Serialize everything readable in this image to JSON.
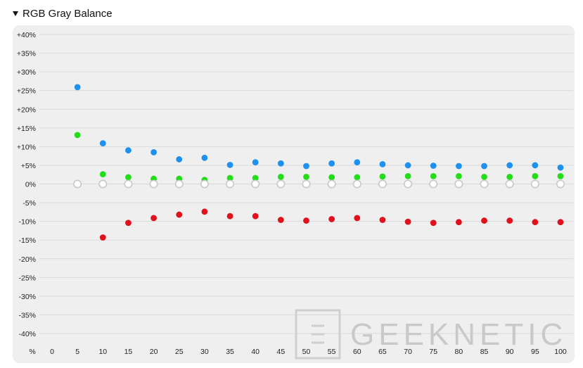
{
  "header": {
    "title": "RGB Gray Balance"
  },
  "watermark": {
    "text": "GEEKNETIC"
  },
  "colors": {
    "blue": "#1e90ef",
    "green": "#22dd18",
    "red": "#e0101c",
    "gray_ring": "#c8c8c8",
    "grid": "#d9d9d9",
    "panel": "#efefef"
  },
  "chart_data": {
    "type": "scatter",
    "title": "RGB Gray Balance",
    "x_axis_unit_label": "%",
    "x_ticks": [
      "0",
      "5",
      "10",
      "15",
      "20",
      "25",
      "30",
      "35",
      "40",
      "45",
      "50",
      "55",
      "60",
      "65",
      "70",
      "75",
      "80",
      "85",
      "90",
      "95",
      "100"
    ],
    "y_ticks": [
      "+40%",
      "+35%",
      "+30%",
      "+25%",
      "+20%",
      "+15%",
      "+10%",
      "+5%",
      "0%",
      "-5%",
      "-10%",
      "-15%",
      "-20%",
      "-25%",
      "-30%",
      "-35%",
      "-40%"
    ],
    "ylim": [
      -40,
      40
    ],
    "xlim": [
      0,
      100
    ],
    "grid": true,
    "x": [
      5,
      10,
      15,
      20,
      25,
      30,
      35,
      40,
      45,
      50,
      55,
      60,
      65,
      70,
      75,
      80,
      85,
      90,
      95,
      100
    ],
    "series": [
      {
        "color": "blue",
        "values": [
          25.9,
          10.9,
          9.0,
          8.5,
          6.6,
          7.0,
          5.1,
          5.8,
          5.5,
          4.8,
          5.5,
          5.8,
          5.3,
          5.0,
          4.9,
          4.8,
          4.8,
          5.0,
          5.0,
          4.4
        ]
      },
      {
        "color": "green",
        "values": [
          13.1,
          2.6,
          1.8,
          1.4,
          1.4,
          1.1,
          1.6,
          1.6,
          1.9,
          1.9,
          1.8,
          1.8,
          2.0,
          2.1,
          2.1,
          2.1,
          1.9,
          1.9,
          2.1,
          2.1
        ]
      },
      {
        "color": "gray_ring",
        "values": [
          0,
          0,
          0,
          0,
          0,
          0,
          0,
          0,
          0,
          0,
          0,
          0,
          0,
          0,
          0,
          0,
          0,
          0,
          0,
          0
        ]
      },
      {
        "color": "red",
        "values": [
          null,
          -14.3,
          -10.4,
          -9.1,
          -8.2,
          -7.4,
          -8.6,
          -8.6,
          -9.6,
          -9.8,
          -9.4,
          -9.1,
          -9.6,
          -10.1,
          -10.4,
          -10.2,
          -9.8,
          -9.8,
          -10.2,
          -10.2
        ]
      }
    ]
  }
}
